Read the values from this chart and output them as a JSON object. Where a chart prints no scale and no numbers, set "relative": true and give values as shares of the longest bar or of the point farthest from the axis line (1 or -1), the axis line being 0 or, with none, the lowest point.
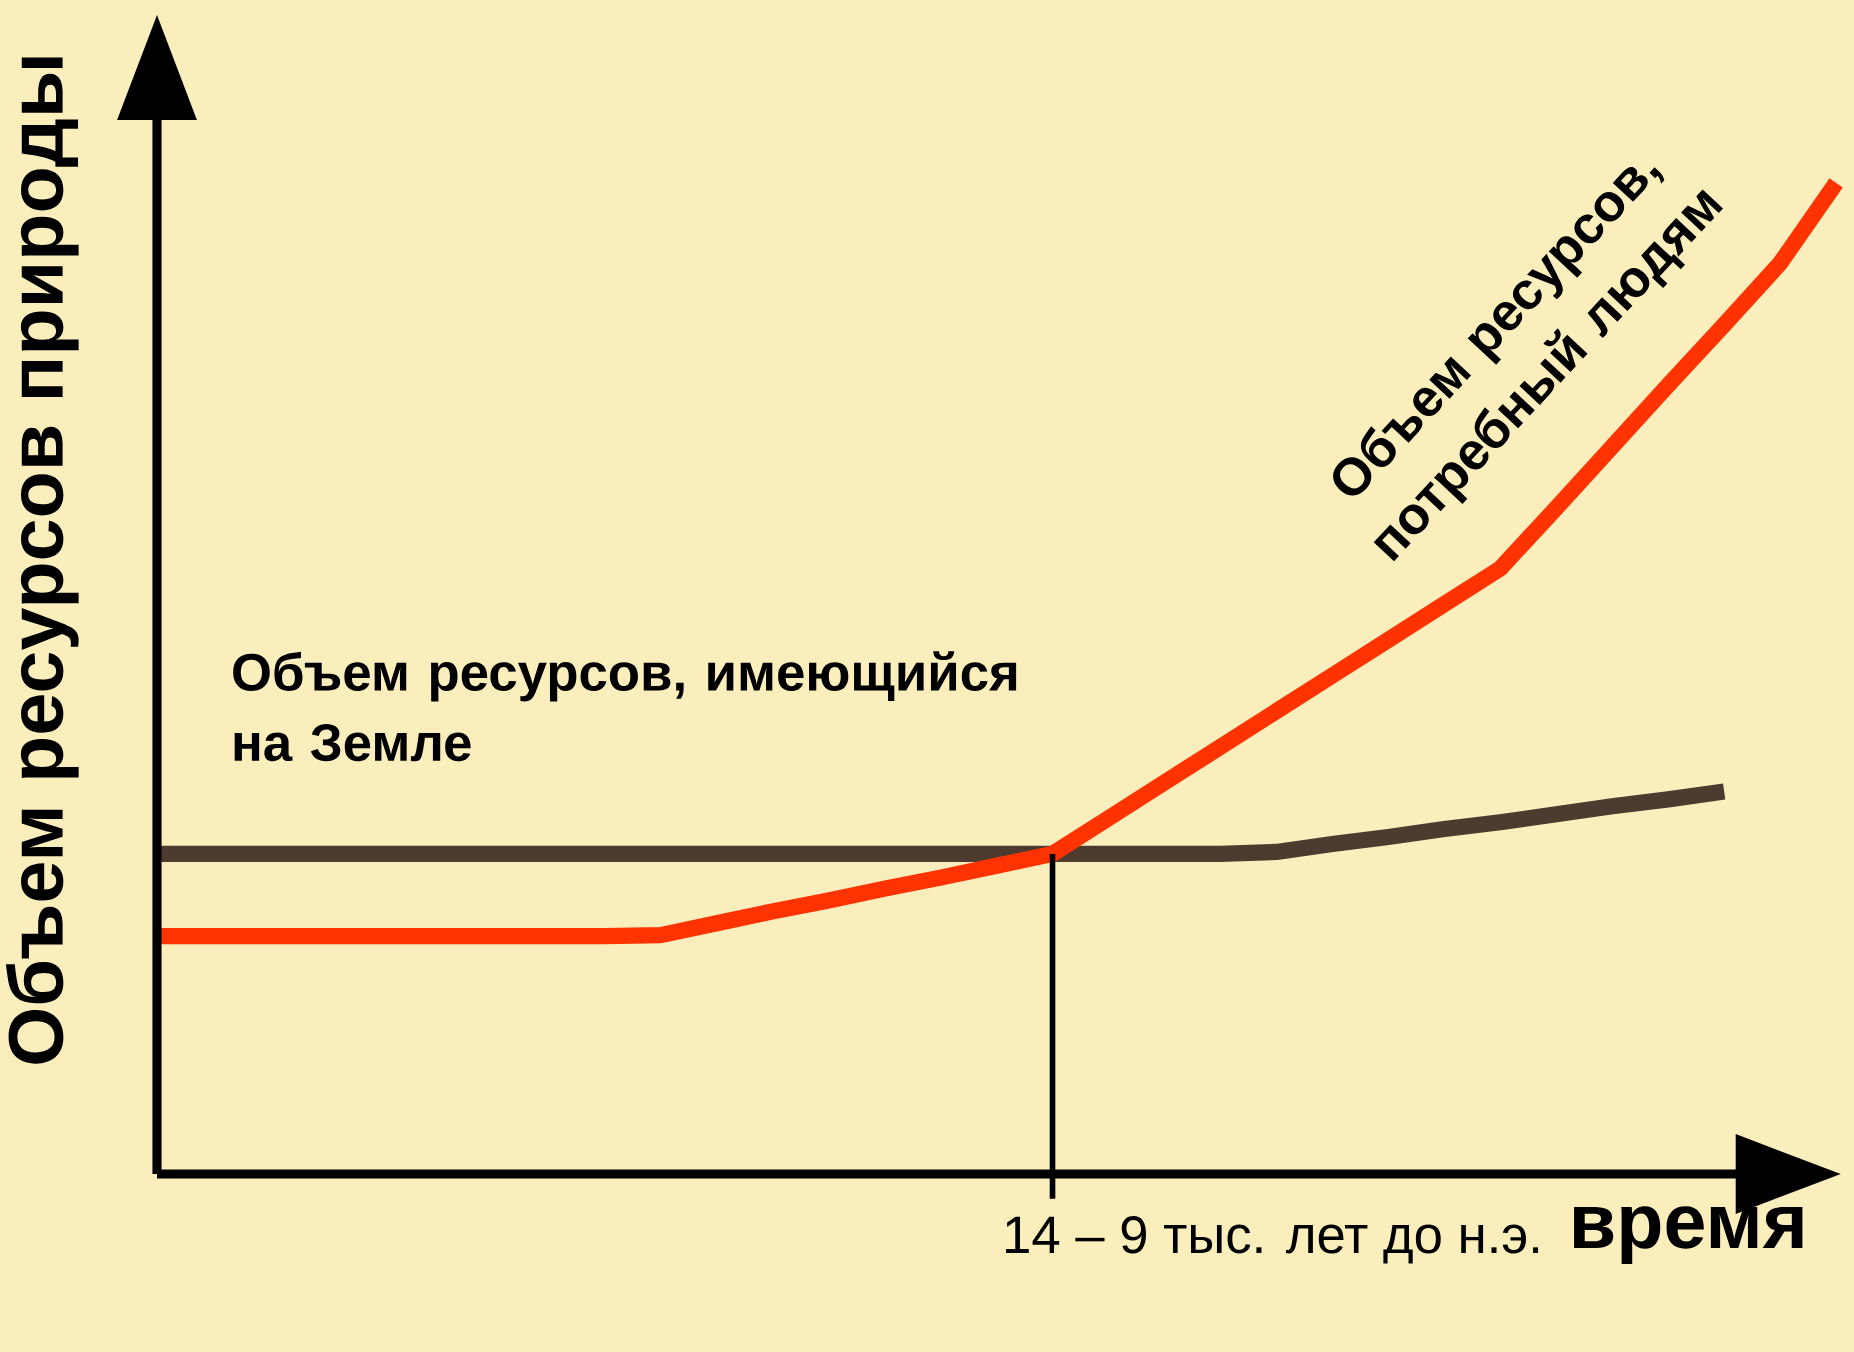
{
  "chart_data": {
    "type": "line",
    "relative": true,
    "ylabel": "Объем ресурсов природы",
    "xlabel": "время",
    "categories": [
      null,
      null,
      null,
      null,
      null,
      null,
      null,
      null,
      null,
      null,
      null,
      null,
      null,
      null,
      null,
      null,
      null,
      null,
      null,
      null,
      null,
      null,
      null,
      null,
      null,
      null,
      null,
      null,
      null,
      null,
      null
    ],
    "series": [
      {
        "name": "Объем ресурсов, имеющийся на Земле",
        "color": "#4d3b30",
        "values": [
          0.323,
          0.323,
          0.323,
          0.323,
          0.323,
          0.323,
          0.323,
          0.323,
          0.323,
          0.323,
          0.323,
          0.323,
          0.323,
          0.323,
          0.323,
          0.323,
          0.323,
          0.323,
          0.323,
          0.323,
          0.325,
          0.333,
          0.34,
          0.348,
          0.355,
          0.363,
          0.371,
          0.378,
          0.386,
          null,
          null
        ]
      },
      {
        "name": "Объем ресурсов, потребный людям",
        "color": "#ff3300",
        "values": [
          0.24,
          0.24,
          0.24,
          0.24,
          0.24,
          0.24,
          0.24,
          0.24,
          0.24,
          0.241,
          0.253,
          0.265,
          0.276,
          0.288,
          0.299,
          0.311,
          0.323,
          0.359,
          0.395,
          0.431,
          0.467,
          0.503,
          0.539,
          0.575,
          0.611,
          0.672,
          0.734,
          0.796,
          0.857,
          0.919,
          1.0
        ]
      }
    ],
    "annotations": [
      "14 – 9 тыс. лет до н.э."
    ]
  }
}
